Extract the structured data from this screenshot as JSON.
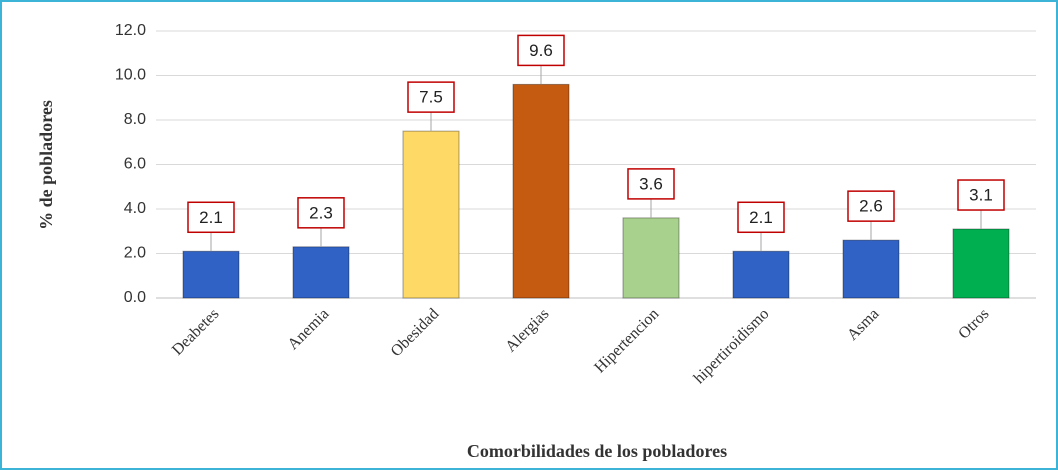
{
  "chart_data": {
    "type": "bar",
    "categories": [
      "Deabetes",
      "Anemia",
      "Obesidad",
      "Alergias",
      "Hipertencion",
      "hipertiroidismo",
      "Asma",
      "Otros"
    ],
    "values": [
      2.1,
      2.3,
      7.5,
      9.6,
      3.6,
      2.1,
      2.6,
      3.1
    ],
    "colors": [
      "#2f62c4",
      "#2f62c4",
      "#ffd966",
      "#c55a11",
      "#a9d18e",
      "#2f62c4",
      "#2f62c4",
      "#00b050"
    ],
    "ylim": [
      0,
      12
    ],
    "yticks": [
      {
        "value": 0,
        "label": "0.0"
      },
      {
        "value": 2,
        "label": "2.0"
      },
      {
        "value": 4,
        "label": "4.0"
      },
      {
        "value": 6,
        "label": "6.0"
      },
      {
        "value": 8,
        "label": "8.0"
      },
      {
        "value": 10,
        "label": "10.0"
      },
      {
        "value": 12,
        "label": "12.0"
      }
    ],
    "grid": true,
    "ylabel": "% de pobladores",
    "xlabel": "Comorbilidades de los pobladores"
  }
}
